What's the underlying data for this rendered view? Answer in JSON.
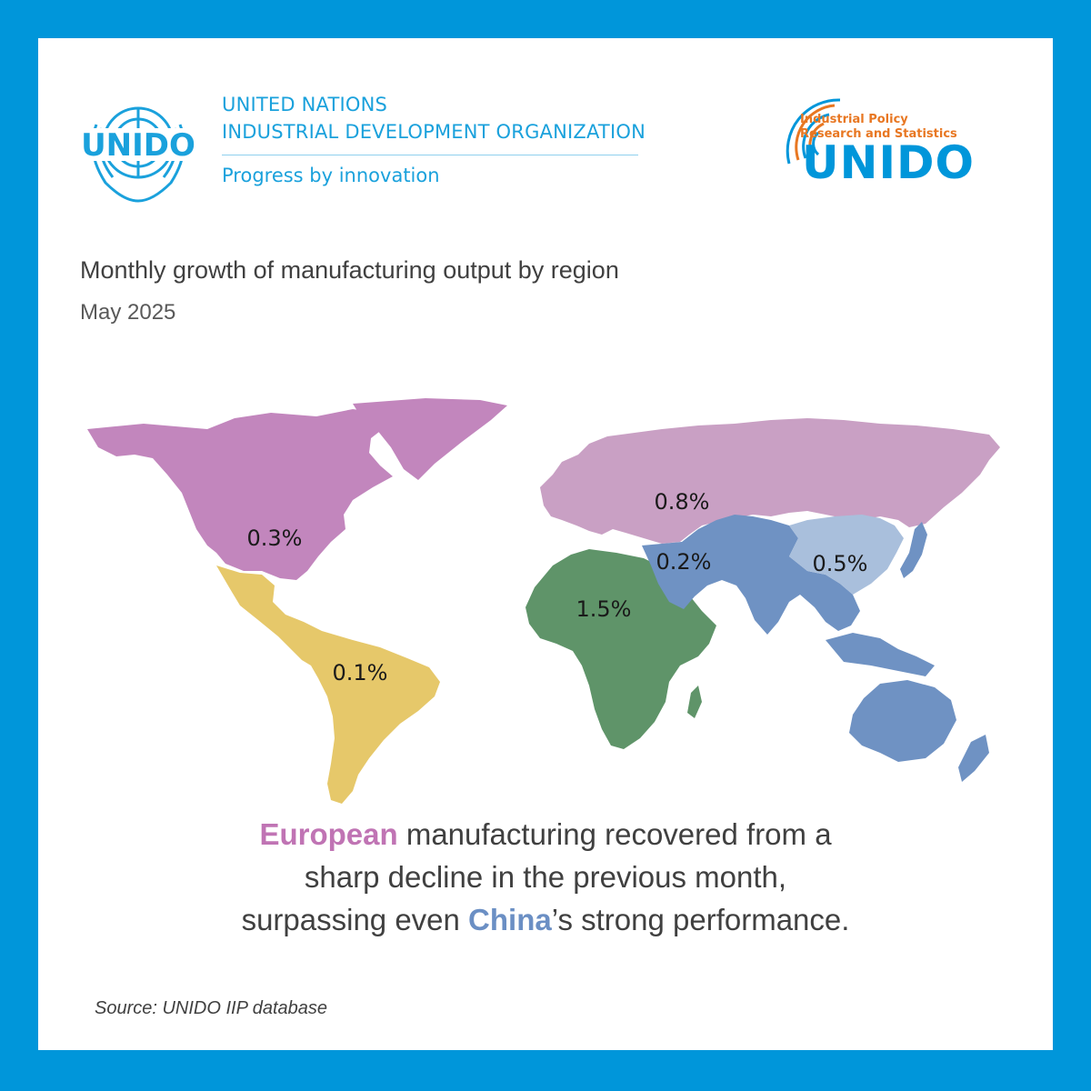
{
  "header": {
    "org_line1": "UNITED NATIONS",
    "org_line2": "INDUSTRIAL DEVELOPMENT ORGANIZATION",
    "tagline": "Progress by innovation",
    "left_logo_text": "UNIDO",
    "right_logo_small1": "Industrial Policy",
    "right_logo_small2": "Research and Statistics",
    "right_logo_brand": "UNIDO"
  },
  "title": "Monthly growth of manufacturing output by region",
  "subtitle": "May 2025",
  "colors": {
    "frame": "#0096da",
    "north_america": "#c286bd",
    "europe": "#c9a0c4",
    "latin_america": "#e6c86a",
    "africa": "#5f9469",
    "asia_pacific": "#6f92c3",
    "china": "#a9bfdc"
  },
  "regions": [
    {
      "id": "north_america",
      "value": "0.3%"
    },
    {
      "id": "europe",
      "value": "0.8%"
    },
    {
      "id": "asia_pacific",
      "value": "0.2%"
    },
    {
      "id": "china",
      "value": "0.5%"
    },
    {
      "id": "africa",
      "value": "1.5%"
    },
    {
      "id": "latin_america",
      "value": "0.1%"
    }
  ],
  "summary": {
    "highlight1": "European",
    "line1_rest": " manufacturing recovered from a",
    "line2": "sharp decline in the previous month,",
    "line3_start": "surpassing even ",
    "highlight2": "China",
    "line3_end": "’s strong performance."
  },
  "source": "Source: UNIDO IIP database"
}
